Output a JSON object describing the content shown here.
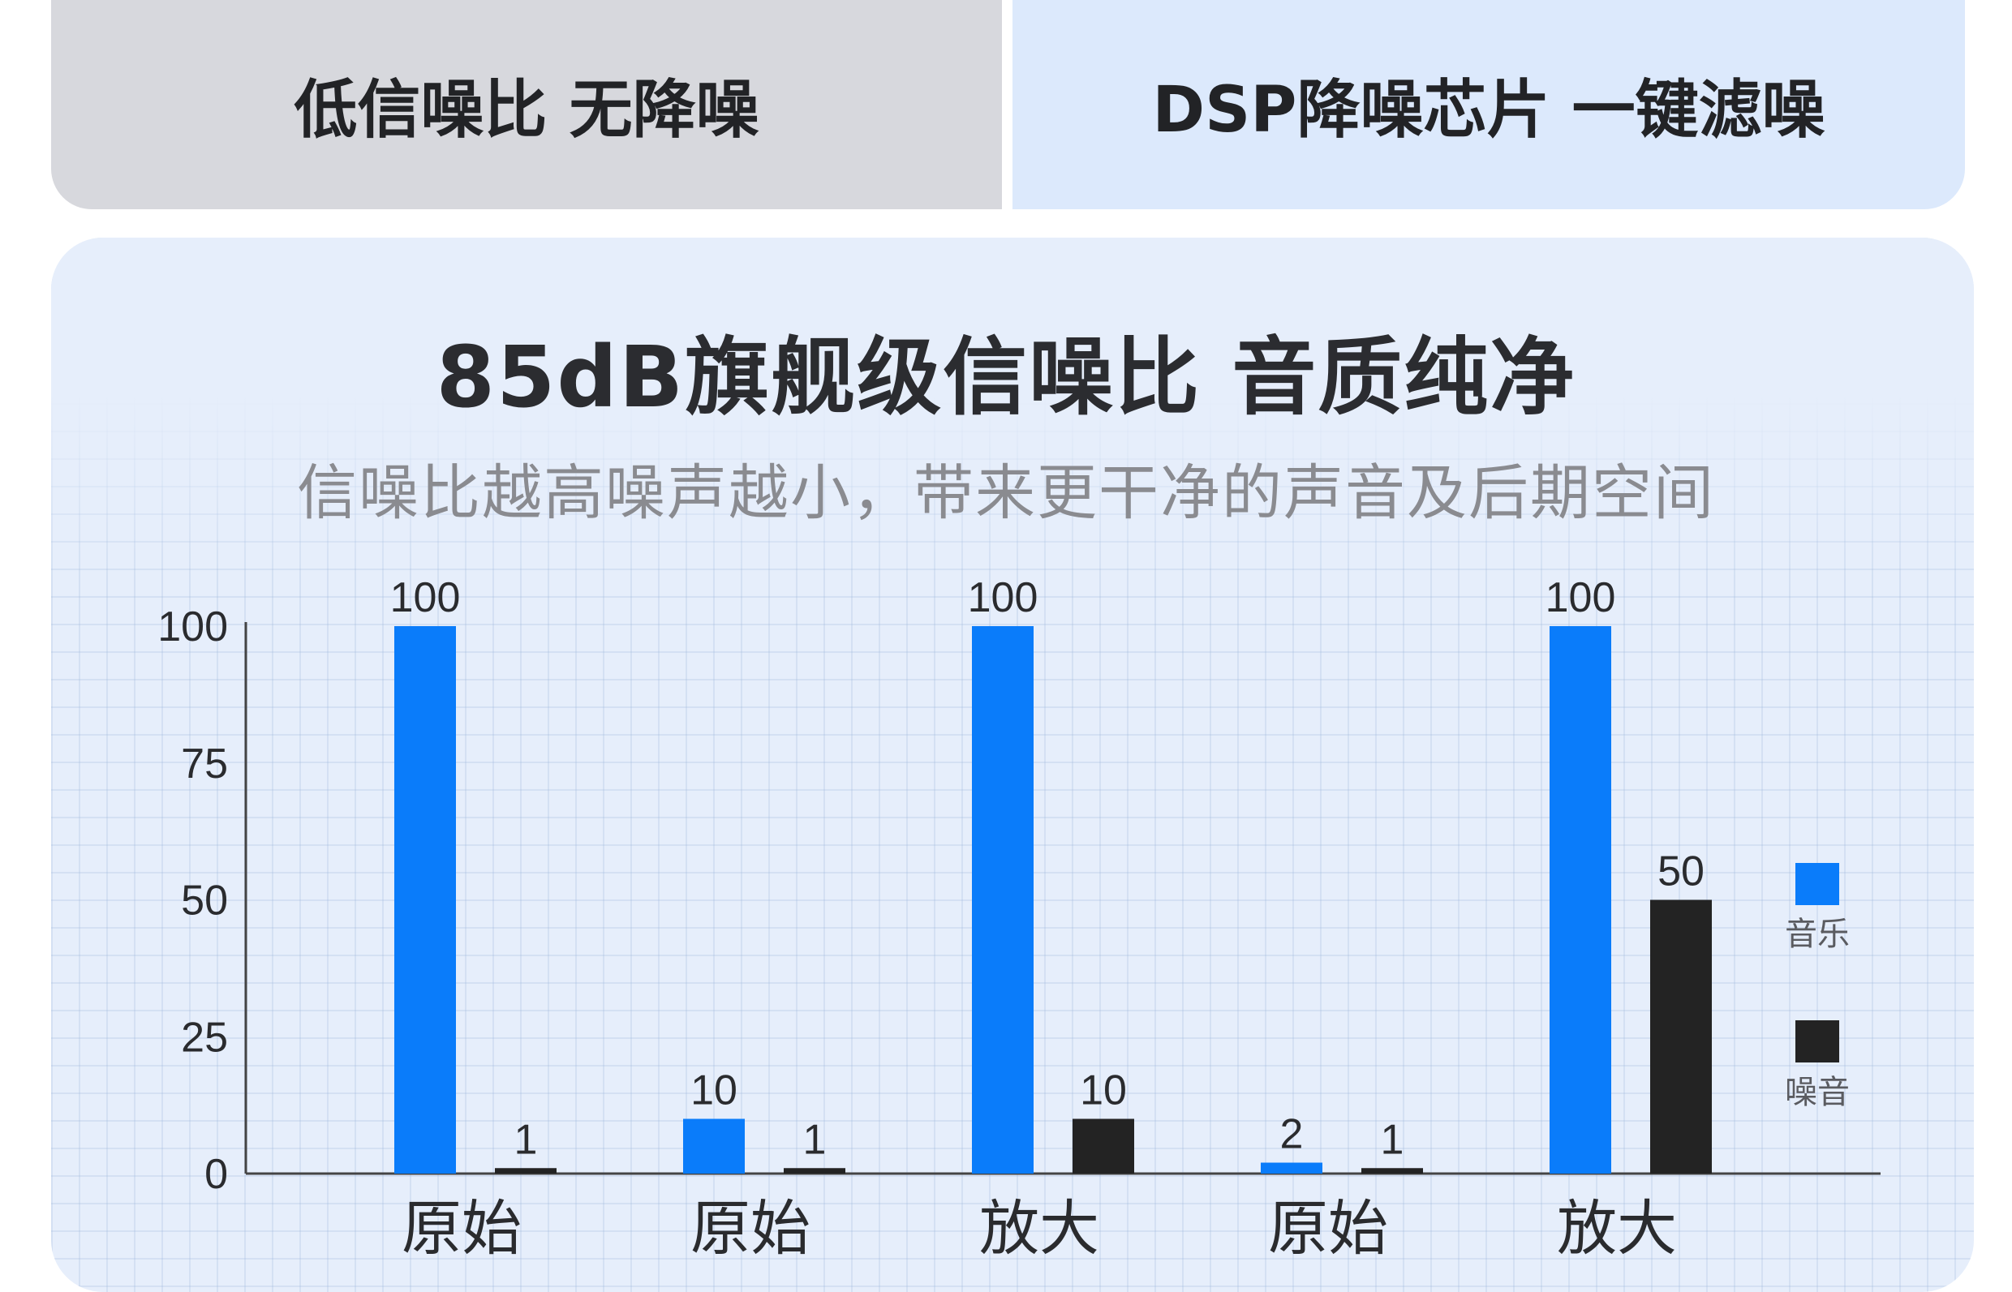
{
  "tabs": [
    {
      "label": "低信噪比 无降噪"
    },
    {
      "label": "DSP降噪芯片 一键滤噪"
    }
  ],
  "title": "85dB旗舰级信噪比 音质纯净",
  "subtitle": "信噪比越高噪声越小，带来更干净的声音及后期空间",
  "colors": {
    "music": "#0a7cfa",
    "noise": "#232323"
  },
  "chart_data": {
    "type": "bar",
    "categories": [
      "原始",
      "原始",
      "放大",
      "原始",
      "放大"
    ],
    "series": [
      {
        "name": "音乐",
        "values": [
          100,
          10,
          100,
          2,
          100
        ]
      },
      {
        "name": "噪音",
        "values": [
          1,
          1,
          10,
          1,
          50
        ]
      }
    ],
    "ylim": [
      0,
      100
    ],
    "yticks": [
      "0",
      "25",
      "50",
      "75",
      "100"
    ],
    "legend": "right",
    "grid": true
  }
}
